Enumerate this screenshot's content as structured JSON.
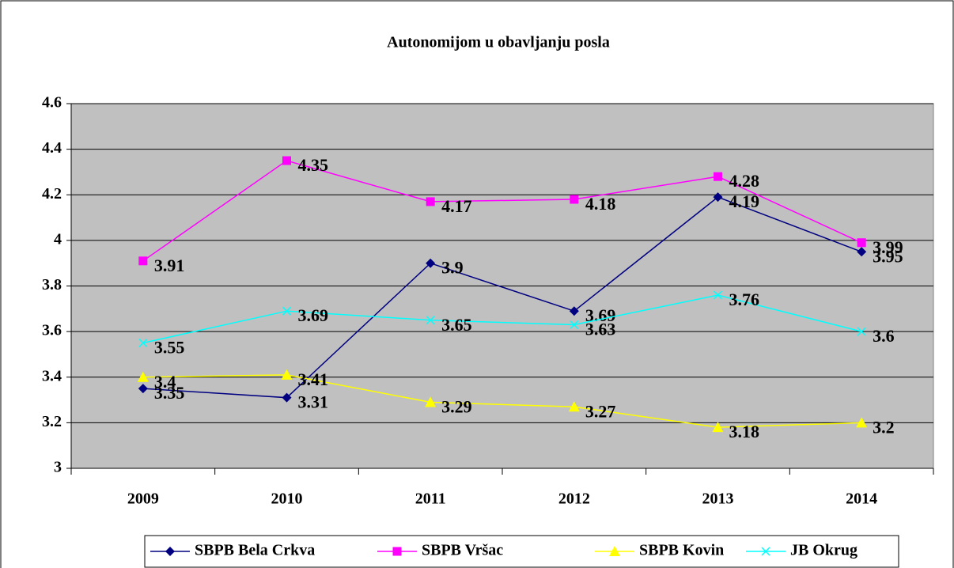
{
  "chart_data": {
    "type": "line",
    "title": "Autonomijom u obavljanju posla",
    "categories": [
      "2009",
      "2010",
      "2011",
      "2012",
      "2013",
      "2014"
    ],
    "series": [
      {
        "name": "SBPB Bela Crkva",
        "color": "#000080",
        "marker": "diamond",
        "values": [
          3.35,
          3.31,
          3.9,
          3.69,
          4.19,
          3.95
        ]
      },
      {
        "name": "SBPB Vršac",
        "color": "#ff00ff",
        "marker": "square",
        "values": [
          3.91,
          4.35,
          4.17,
          4.18,
          4.28,
          3.99
        ]
      },
      {
        "name": "SBPB Kovin",
        "color": "#ffff00",
        "marker": "triangle",
        "values": [
          3.4,
          3.41,
          3.29,
          3.27,
          3.18,
          3.2
        ]
      },
      {
        "name": "JB Okrug",
        "color": "#00ffff",
        "marker": "x",
        "values": [
          3.55,
          3.69,
          3.65,
          3.63,
          3.76,
          3.6
        ]
      }
    ],
    "ylim": [
      3,
      4.6
    ],
    "yticks": [
      3,
      3.2,
      3.4,
      3.6,
      3.8,
      4,
      4.2,
      4.4,
      4.6
    ],
    "grid": true,
    "legend": "bottom"
  }
}
